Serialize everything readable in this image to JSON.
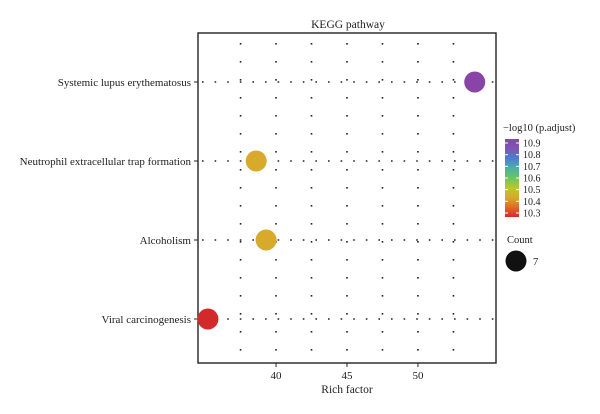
{
  "chart_data": {
    "type": "scatter",
    "title": "KEGG pathway",
    "xlabel": "Rich factor",
    "ylabel": "",
    "xlim": [
      34.5,
      55.5
    ],
    "x_ticks": [
      40,
      45,
      50
    ],
    "x_tick_labels": [
      "40",
      "45",
      "50"
    ],
    "categories": [
      "Systemic lupus erythematosus",
      "Neutrophil extracellular trap formation",
      "Alcoholism",
      "Viral carcinogenesis"
    ],
    "points": [
      {
        "category": "Systemic lupus erythematosus",
        "x": 54.0,
        "neglog10_padjust": 10.88,
        "count": 7,
        "color": "#8a44a8"
      },
      {
        "category": "Neutrophil extracellular trap formation",
        "x": 38.6,
        "neglog10_padjust": 10.39,
        "count": 7,
        "color": "#d8aa2c"
      },
      {
        "category": "Alcoholism",
        "x": 39.3,
        "neglog10_padjust": 10.39,
        "count": 7,
        "color": "#d8aa2c"
      },
      {
        "category": "Viral carcinogenesis",
        "x": 35.2,
        "neglog10_padjust": 10.3,
        "count": 7,
        "color": "#d22a2a"
      }
    ],
    "color_legend": {
      "title": "−log10 (p.adjust)",
      "ticks": [
        "10.9",
        "10.8",
        "10.7",
        "10.6",
        "10.5",
        "10.4",
        "10.3"
      ],
      "gradient": [
        "#d42a2a",
        "#e06a26",
        "#d8aa2c",
        "#b8c832",
        "#6cc45c",
        "#4ab2a8",
        "#4a7ed0",
        "#7e56b4",
        "#8a44a8"
      ]
    },
    "size_legend": {
      "title": "Count",
      "entries": [
        {
          "label": "7",
          "color": "#111111"
        }
      ]
    },
    "grid": "dotted",
    "legend_placement": "right"
  }
}
